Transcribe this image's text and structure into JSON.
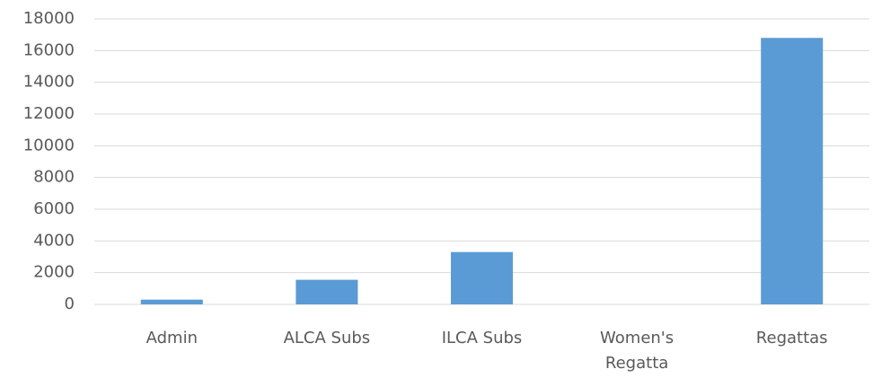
{
  "chart_data": {
    "type": "bar",
    "categories": [
      "Admin",
      "ALCA Subs",
      "ILCA Subs",
      "Women's Regatta",
      "Regattas"
    ],
    "values": [
      300,
      1550,
      3300,
      0,
      16800
    ],
    "color": "#5b9bd5",
    "ylim": [
      0,
      18000
    ],
    "yticks": [
      0,
      2000,
      4000,
      6000,
      8000,
      10000,
      12000,
      14000,
      16000,
      18000
    ],
    "grid": true
  }
}
